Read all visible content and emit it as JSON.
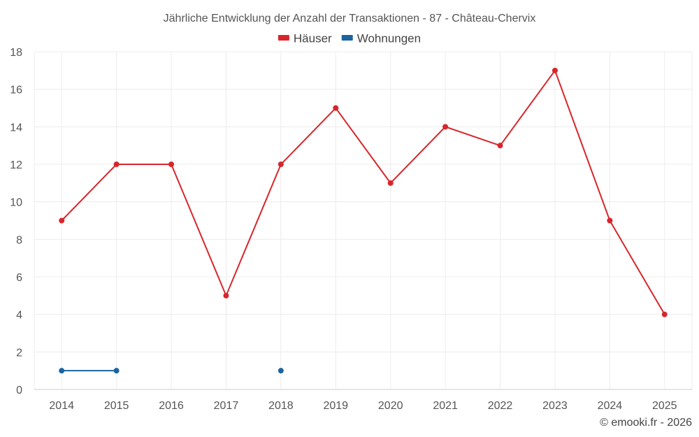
{
  "chart_data": {
    "type": "line",
    "title": "Jährliche Entwicklung der Anzahl der Transaktionen - 87 - Château-Chervix",
    "xlabel": "",
    "ylabel": "",
    "categories": [
      "2014",
      "2015",
      "2016",
      "2017",
      "2018",
      "2019",
      "2020",
      "2021",
      "2022",
      "2023",
      "2024",
      "2025"
    ],
    "ylim": [
      0,
      18
    ],
    "yticks": [
      0,
      2,
      4,
      6,
      8,
      10,
      12,
      14,
      16,
      18
    ],
    "grid": true,
    "legend": "top-center",
    "series": [
      {
        "name": "Häuser",
        "color": "#d7262b",
        "values": [
          9,
          12,
          12,
          5,
          12,
          15,
          11,
          14,
          13,
          17,
          9,
          4
        ]
      },
      {
        "name": "Wohnungen",
        "color": "#1a64a0",
        "values": [
          1,
          1,
          null,
          null,
          1,
          null,
          null,
          null,
          null,
          null,
          null,
          null
        ]
      }
    ]
  },
  "credit": "© emooki.fr - 2026"
}
